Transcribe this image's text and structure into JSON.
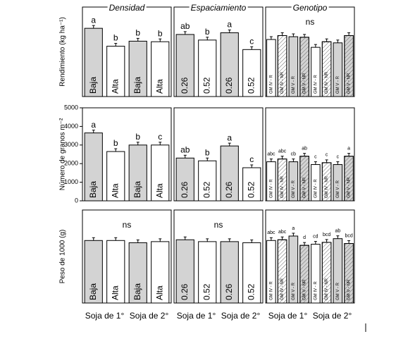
{
  "chart_data": [
    {
      "type": "bar",
      "title": "Densidad",
      "ylabel": "Rendimiento (kg ha⁻¹)",
      "categories": [
        "Baja",
        "Alta",
        "Baja",
        "Alta"
      ],
      "values": [
        6100,
        4500,
        4950,
        4900
      ],
      "letters": [
        "a",
        "b",
        "b",
        "b"
      ],
      "colors": [
        "#d3d3d3",
        "#ffffff",
        "#d3d3d3",
        "#ffffff"
      ],
      "hatched": [
        false,
        false,
        false,
        false
      ],
      "ylim": [
        0,
        8000
      ]
    },
    {
      "type": "bar",
      "title": "Espaciamiento",
      "categories": [
        "0.26",
        "0.52",
        "0.26",
        "0.52"
      ],
      "values": [
        5550,
        5050,
        5700,
        4200
      ],
      "letters": [
        "ab",
        "b",
        "a",
        "c"
      ],
      "colors": [
        "#d3d3d3",
        "#ffffff",
        "#d3d3d3",
        "#ffffff"
      ],
      "hatched": [
        false,
        false,
        false,
        false
      ],
      "ylim": [
        0,
        8000
      ]
    },
    {
      "type": "bar",
      "title": "Genotipo",
      "annotation": "ns",
      "categories": [
        "GM IV - R",
        "GM IV - NR",
        "GM V - R",
        "GM V - NR",
        "GM IV - R",
        "GM IV - NR",
        "GM V - R",
        "GM V - NR"
      ],
      "values": [
        5100,
        5450,
        5350,
        5300,
        4400,
        4900,
        4800,
        5450
      ],
      "colors": [
        "#ffffff",
        "#ffffff",
        "#d3d3d3",
        "#d3d3d3",
        "#ffffff",
        "#ffffff",
        "#d3d3d3",
        "#d3d3d3"
      ],
      "hatched": [
        false,
        true,
        false,
        true,
        false,
        true,
        false,
        true
      ],
      "ylim": [
        0,
        8000
      ]
    },
    {
      "type": "bar",
      "ylabel": "Número de granos m⁻²",
      "categories": [
        "Baja",
        "Alta",
        "Baja",
        "Alta"
      ],
      "values": [
        3650,
        2650,
        3000,
        3000
      ],
      "letters": [
        "a",
        "b",
        "b",
        "c"
      ],
      "colors": [
        "#d3d3d3",
        "#ffffff",
        "#d3d3d3",
        "#ffffff"
      ],
      "hatched": [
        false,
        false,
        false,
        false
      ],
      "ylim": [
        0,
        5000
      ],
      "yticks": [
        0,
        1000,
        2000,
        3000,
        4000,
        5000
      ]
    },
    {
      "type": "bar",
      "categories": [
        "0.26",
        "0.52",
        "0.26",
        "0.52"
      ],
      "values": [
        2300,
        2150,
        2950,
        1780
      ],
      "letters": [
        "ab",
        "b",
        "a",
        "c"
      ],
      "colors": [
        "#d3d3d3",
        "#ffffff",
        "#d3d3d3",
        "#ffffff"
      ],
      "hatched": [
        false,
        false,
        false,
        false
      ],
      "ylim": [
        0,
        5000
      ]
    },
    {
      "type": "bar",
      "categories": [
        "GM IV - R",
        "GM IV - NR",
        "GM V - R",
        "GM V - NR",
        "GM IV - R",
        "GM IV - NR",
        "GM V - R",
        "GM V - NR"
      ],
      "values": [
        2100,
        2250,
        2100,
        2400,
        1950,
        2050,
        1950,
        2400
      ],
      "letters": [
        "abc",
        "abc",
        "cb",
        "ab",
        "c",
        "c",
        "c",
        "a"
      ],
      "colors": [
        "#ffffff",
        "#ffffff",
        "#d3d3d3",
        "#d3d3d3",
        "#ffffff",
        "#ffffff",
        "#d3d3d3",
        "#d3d3d3"
      ],
      "hatched": [
        false,
        true,
        false,
        true,
        false,
        true,
        false,
        true
      ],
      "ylim": [
        0,
        5000
      ]
    },
    {
      "type": "bar",
      "ylabel": "Peso de 1000 (g)",
      "annotation": "ns",
      "categories": [
        "Baja",
        "Alta",
        "Baja",
        "Alta"
      ],
      "values": [
        168,
        168,
        162,
        165
      ],
      "colors": [
        "#d3d3d3",
        "#ffffff",
        "#d3d3d3",
        "#ffffff"
      ],
      "hatched": [
        false,
        false,
        false,
        false
      ],
      "ylim": [
        0,
        250
      ],
      "groups": [
        "Soja de 1°",
        "Soja de 2°"
      ]
    },
    {
      "type": "bar",
      "annotation": "ns",
      "categories": [
        "0.26",
        "0.52",
        "0.26",
        "0.52"
      ],
      "values": [
        170,
        165,
        165,
        162
      ],
      "colors": [
        "#d3d3d3",
        "#ffffff",
        "#d3d3d3",
        "#ffffff"
      ],
      "hatched": [
        false,
        false,
        false,
        false
      ],
      "ylim": [
        0,
        250
      ],
      "groups": [
        "Soja de 1°",
        "Soja de 2°"
      ]
    },
    {
      "type": "bar",
      "categories": [
        "GM IV - R",
        "GM IV - NR",
        "GM V - R",
        "GM V - NR",
        "GM IV - R",
        "GM IV - NR",
        "GM V - R",
        "GM V - NR"
      ],
      "values": [
        168,
        170,
        180,
        155,
        158,
        163,
        173,
        160
      ],
      "letters": [
        "abc",
        "abc",
        "a",
        "d",
        "cd",
        "bcd",
        "ab",
        "bcd"
      ],
      "colors": [
        "#ffffff",
        "#ffffff",
        "#d3d3d3",
        "#d3d3d3",
        "#ffffff",
        "#ffffff",
        "#d3d3d3",
        "#d3d3d3"
      ],
      "hatched": [
        false,
        true,
        false,
        true,
        false,
        true,
        false,
        true
      ],
      "ylim": [
        0,
        250
      ],
      "groups": [
        "Soja de 1°",
        "Soja de 2°"
      ]
    }
  ]
}
